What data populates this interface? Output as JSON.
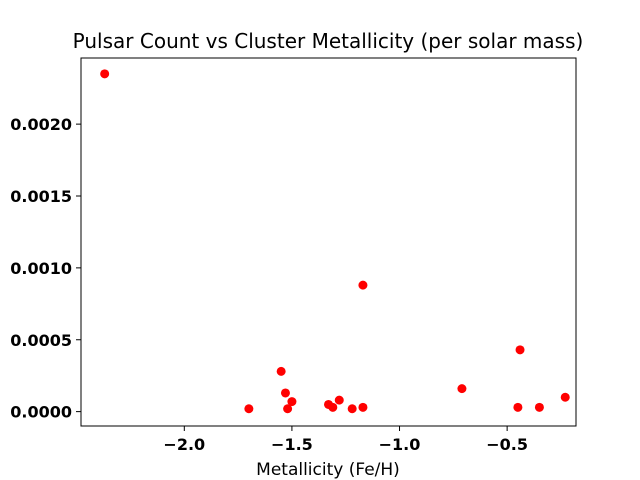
{
  "chart_data": {
    "type": "scatter",
    "title": "Pulsar Count vs Cluster Metallicity (per solar mass)",
    "xlabel": "Metallicity (Fe/H)",
    "ylabel": "",
    "xlim": [
      -2.48,
      -0.18
    ],
    "ylim": [
      -0.0001,
      0.00246
    ],
    "xticks": [
      -2.0,
      -1.5,
      -1.0,
      -0.5
    ],
    "xtick_labels": [
      "−2.0",
      "−1.5",
      "−1.0",
      "−0.5"
    ],
    "yticks": [
      0.0,
      0.0005,
      0.001,
      0.0015,
      0.002
    ],
    "ytick_labels": [
      "0.0000",
      "0.0005",
      "0.0010",
      "0.0015",
      "0.0020"
    ],
    "grid": false,
    "marker_color": "#ff0000",
    "series": [
      {
        "points": [
          {
            "x": -2.37,
            "y": 0.00235
          },
          {
            "x": -1.7,
            "y": 2e-05
          },
          {
            "x": -1.55,
            "y": 0.00028
          },
          {
            "x": -1.53,
            "y": 0.00013
          },
          {
            "x": -1.52,
            "y": 2e-05
          },
          {
            "x": -1.5,
            "y": 7e-05
          },
          {
            "x": -1.33,
            "y": 5e-05
          },
          {
            "x": -1.31,
            "y": 3e-05
          },
          {
            "x": -1.28,
            "y": 8e-05
          },
          {
            "x": -1.22,
            "y": 2e-05
          },
          {
            "x": -1.17,
            "y": 0.00088
          },
          {
            "x": -1.17,
            "y": 3e-05
          },
          {
            "x": -0.71,
            "y": 0.00016
          },
          {
            "x": -0.45,
            "y": 3e-05
          },
          {
            "x": -0.44,
            "y": 0.00043
          },
          {
            "x": -0.35,
            "y": 3e-05
          },
          {
            "x": -0.23,
            "y": 0.0001
          }
        ]
      }
    ]
  }
}
